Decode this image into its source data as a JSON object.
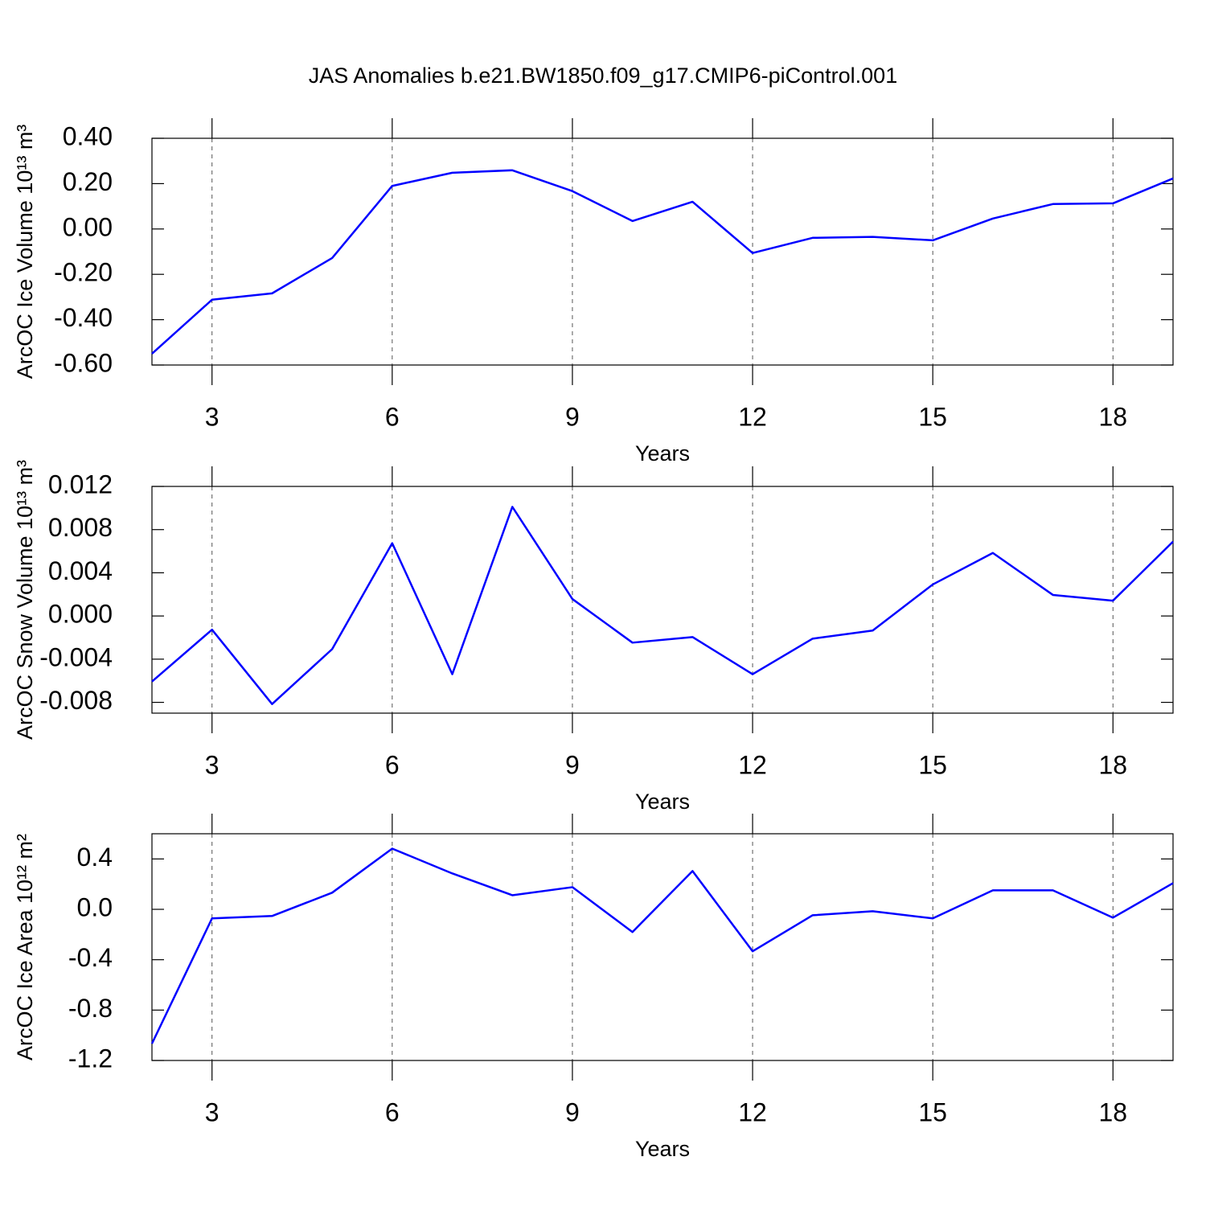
{
  "title": "JAS Anomalies b.e21.BW1850.f09_g17.CMIP6-piControl.001",
  "chart_data": [
    {
      "type": "line",
      "ylabel": "ArcOC Ice Volume 10¹³ m³",
      "xlabel": "Years",
      "x": [
        2,
        3,
        4,
        5,
        6,
        7,
        8,
        9,
        10,
        11,
        12,
        13,
        14,
        15,
        16,
        17,
        18,
        19
      ],
      "values": [
        -0.55,
        -0.312,
        -0.284,
        -0.128,
        0.19,
        0.248,
        0.259,
        0.167,
        0.035,
        0.12,
        -0.106,
        -0.039,
        -0.035,
        -0.05,
        0.046,
        0.11,
        0.113,
        0.223
      ],
      "color": "#0000ff",
      "xlim": [
        2,
        19
      ],
      "xticks": [
        3,
        6,
        9,
        12,
        15,
        18
      ],
      "ylim": [
        -0.6,
        0.4
      ],
      "yticks": [
        {
          "value": 0.4,
          "label": "0.40"
        },
        {
          "value": 0.2,
          "label": "0.20"
        },
        {
          "value": 0,
          "label": "0.00"
        },
        {
          "value": -0.2,
          "label": "-0.20"
        },
        {
          "value": -0.4,
          "label": "-0.40"
        },
        {
          "value": -0.6,
          "label": "-0.60"
        }
      ],
      "grid": true
    },
    {
      "type": "line",
      "ylabel": "ArcOC Snow Volume 10¹³ m³",
      "xlabel": "Years",
      "x": [
        2,
        3,
        4,
        5,
        6,
        7,
        8,
        9,
        10,
        11,
        12,
        13,
        14,
        15,
        16,
        17,
        18,
        19
      ],
      "values": [
        -0.00607,
        -0.00127,
        -0.00816,
        -0.00307,
        0.00674,
        -0.00539,
        0.01011,
        0.00157,
        -0.00247,
        -0.00195,
        -0.00539,
        -0.0021,
        -0.00135,
        0.00292,
        0.00584,
        0.00195,
        0.00142,
        0.00689
      ],
      "color": "#0000ff",
      "xlim": [
        2,
        19
      ],
      "xticks": [
        3,
        6,
        9,
        12,
        15,
        18
      ],
      "ylim": [
        -0.009,
        0.012
      ],
      "yticks": [
        0.012,
        0.008,
        0.004,
        {
          "value": 0,
          "label": "0.000"
        },
        -0.004,
        -0.008
      ],
      "grid": true
    },
    {
      "type": "line",
      "ylabel": "ArcOC Ice Area 10¹² m²",
      "xlabel": "Years",
      "x": [
        2,
        3,
        4,
        5,
        6,
        7,
        8,
        9,
        10,
        11,
        12,
        13,
        14,
        15,
        16,
        17,
        18,
        19
      ],
      "values": [
        -1.066,
        -0.072,
        -0.053,
        0.132,
        0.482,
        0.285,
        0.112,
        0.176,
        -0.18,
        0.304,
        -0.333,
        -0.047,
        -0.015,
        -0.072,
        0.151,
        0.151,
        -0.066,
        0.208
      ],
      "color": "#0000ff",
      "xlim": [
        2,
        19
      ],
      "xticks": [
        3,
        6,
        9,
        12,
        15,
        18
      ],
      "ylim": [
        -1.2,
        0.6
      ],
      "yticks": [
        0.4,
        {
          "value": 0,
          "label": "0.0"
        },
        -0.4,
        -0.8,
        -1.2
      ],
      "grid": true
    }
  ]
}
